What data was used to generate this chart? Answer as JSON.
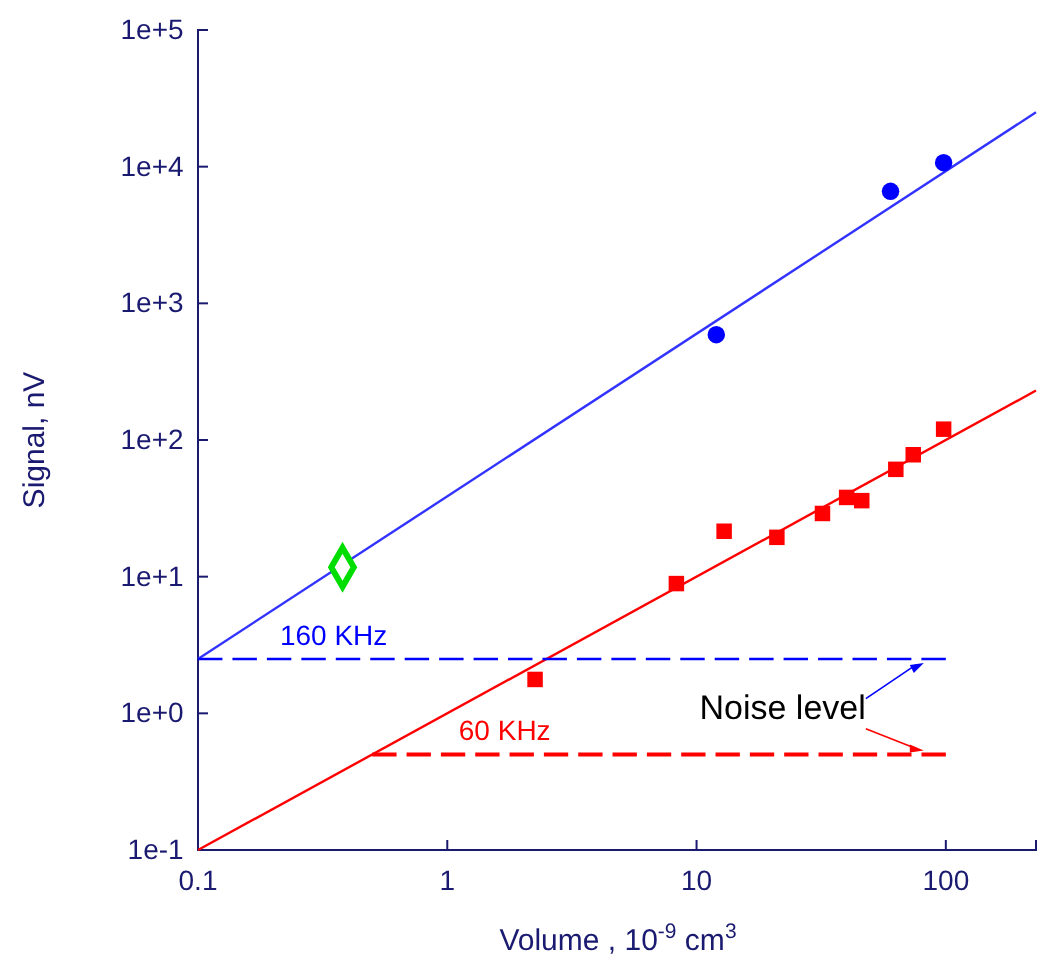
{
  "chart_data": {
    "type": "scatter",
    "xlabel": "Volume , 10$^{-9}$ cm$^{3}$",
    "ylabel": "Signal, nV",
    "log": "xy",
    "grid": false,
    "xlim": [
      0.1,
      230
    ],
    "ylim": [
      0.1,
      100000
    ],
    "xticks": [
      0.1,
      1,
      10,
      100
    ],
    "yticks": [
      {
        "value": 0.1,
        "label": "1e-1"
      },
      {
        "value": 1,
        "label": "1e+0"
      },
      {
        "value": 10,
        "label": "1e+1"
      },
      {
        "value": 100,
        "label": "1e+2"
      },
      {
        "value": 1000,
        "label": "1e+3"
      },
      {
        "value": 10000,
        "label": "1e+4"
      },
      {
        "value": 100000,
        "label": "1e+5"
      }
    ],
    "series": [
      {
        "type": "line",
        "color": "#3333ff",
        "line_style": "solid",
        "x": [
          0.1,
          230
        ],
        "values": [
          2.5,
          25000
        ]
      },
      {
        "type": "line",
        "color": "#ff0000",
        "line_style": "solid",
        "x": [
          0.1,
          230
        ],
        "values": [
          0.1,
          230
        ]
      },
      {
        "type": "line",
        "color": "#0000ff",
        "line_style": "dashed",
        "x": [
          0.1,
          100
        ],
        "values": [
          2.5,
          2.5
        ]
      },
      {
        "type": "line",
        "color": "#ff0000",
        "line_style": "dashed",
        "x": [
          0.5,
          100
        ],
        "values": [
          0.5,
          0.5
        ]
      },
      {
        "color": "#0000ff",
        "marker": "circle",
        "x": [
          12,
          60,
          98
        ],
        "values": [
          590,
          6600,
          10700
        ]
      },
      {
        "color": "#ff0000",
        "marker": "square",
        "x": [
          2.25,
          8.3,
          12.9,
          21,
          32,
          40,
          46,
          63,
          74,
          98
        ],
        "values": [
          1.77,
          8.9,
          21.5,
          19.4,
          29,
          38,
          36,
          61,
          78,
          120
        ]
      },
      {
        "color": "#00dd00",
        "marker": "diamond",
        "x": [
          0.38
        ],
        "values": [
          11.7
        ]
      }
    ],
    "annotations": [
      {
        "text": "160 KHz",
        "x": 0.35,
        "y": 2.5
      },
      {
        "text": "60 KHz",
        "x": 1.7,
        "y": 0.5
      },
      "Noise level"
    ]
  }
}
